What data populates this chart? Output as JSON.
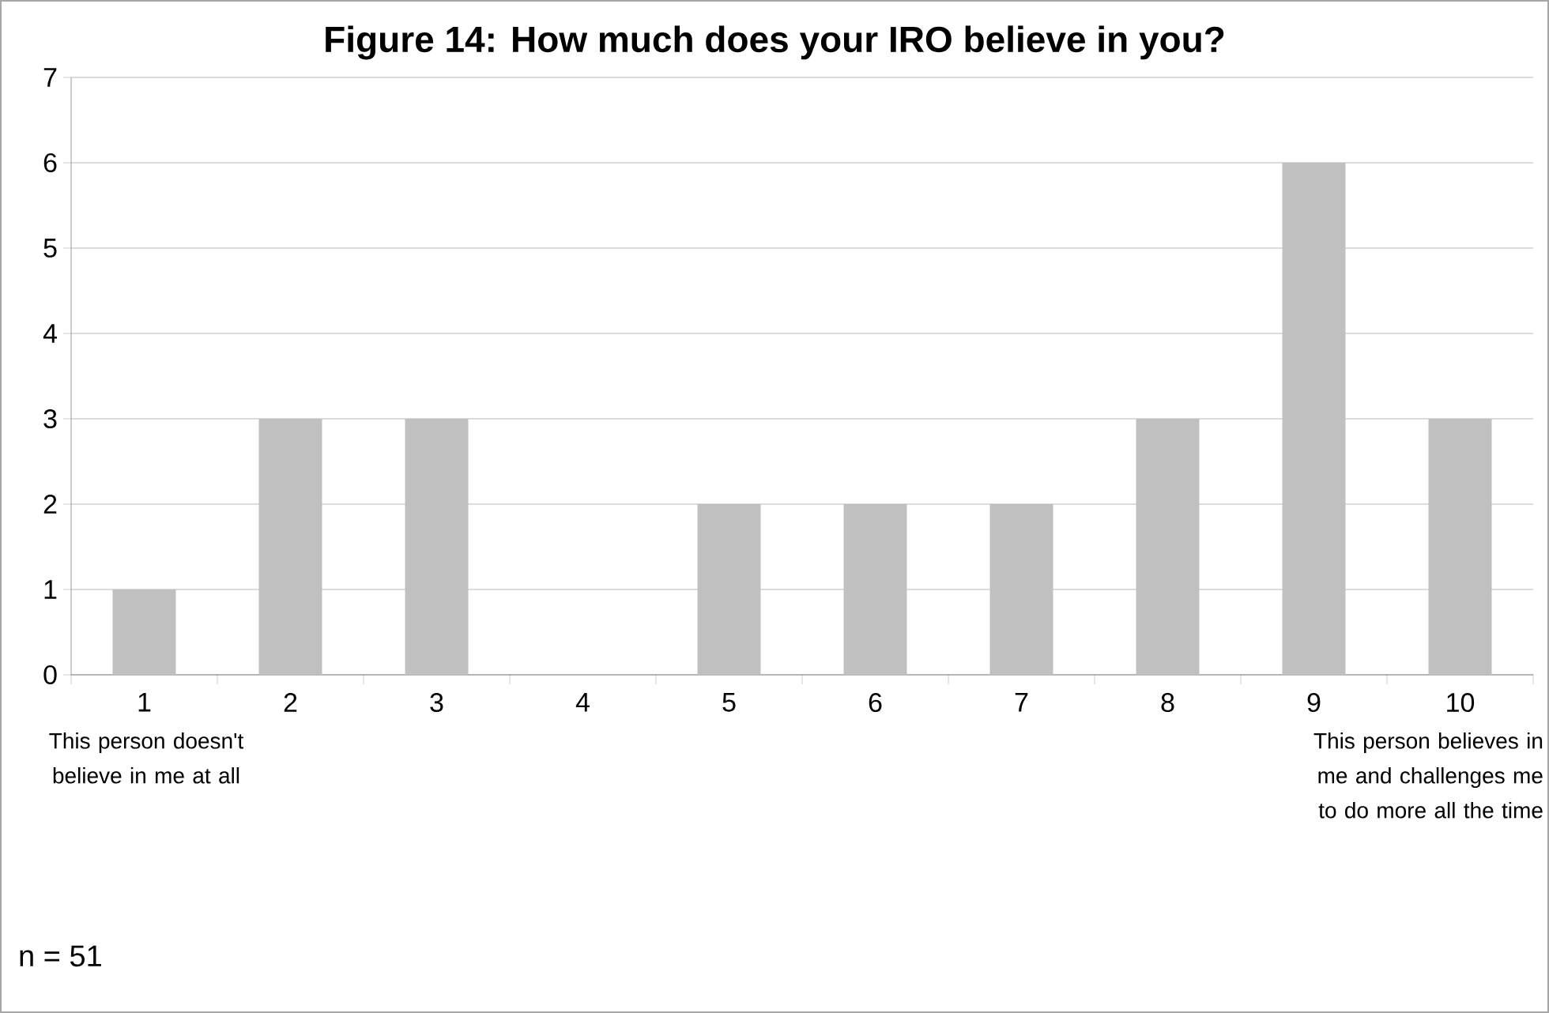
{
  "chart_data": {
    "type": "bar",
    "title": "**Figure 14: How much does your IRO believe in you?**",
    "categories": [
      "1",
      "2",
      "3",
      "4",
      "5",
      "6",
      "7",
      "8",
      "9",
      "10"
    ],
    "values": [
      1,
      3,
      3,
      0,
      2,
      2,
      2,
      3,
      6,
      3
    ],
    "color": "#c0c0c0",
    "ylim": [
      0,
      7
    ],
    "yticks": [
      0,
      1,
      2,
      3,
      4,
      5,
      6,
      7
    ],
    "grid": "y",
    "annotations": [
      "This person doesn't believe in me at all",
      "This person believes in me and challenges me to do more all the time",
      "n = 51"
    ]
  }
}
